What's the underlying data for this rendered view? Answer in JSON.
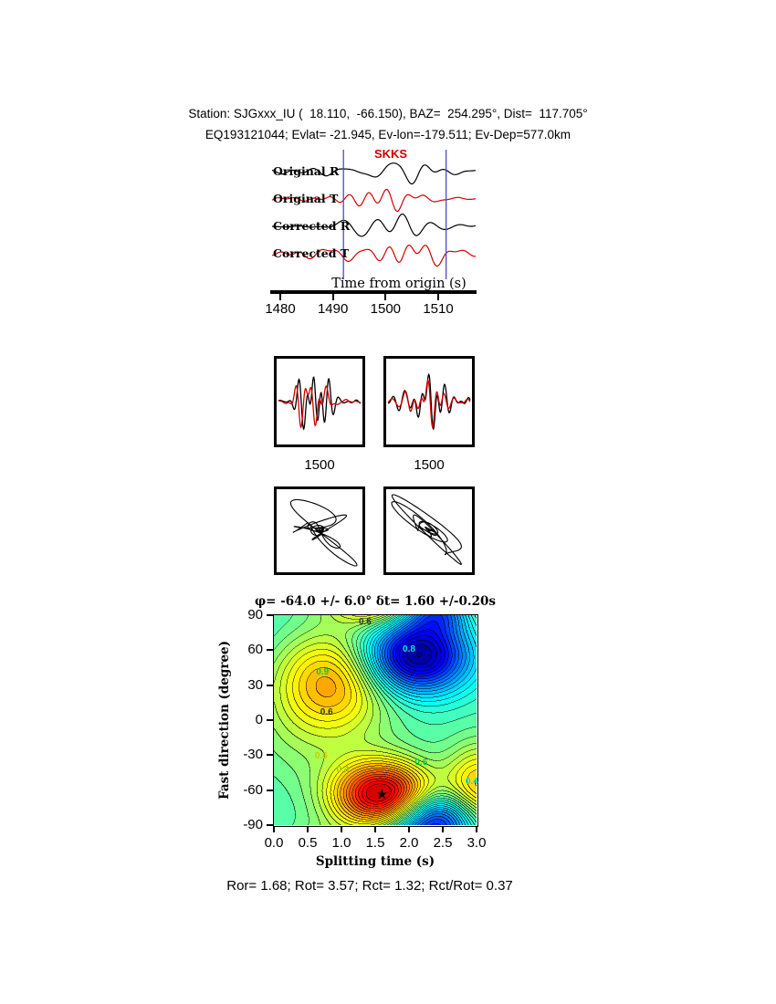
{
  "header": {
    "line1": "Station: SJGxxx_IU (  18.110,  -66.150), BAZ=  254.295°, Dist=  117.705°",
    "line2": "EQ193121044; Evlat= -21.945, Ev-lon=-179.511; Ev-Dep=577.0km"
  },
  "footer": {
    "stats": "Ror= 1.68; Rot= 3.57; Rct= 1.32; Rct/Rot= 0.37"
  },
  "chart_data": {
    "type": "composite",
    "description": "SKKS shear-wave splitting diagnostic figure: seismogram traces, corrected waveform pairs, particle motion, and splitting-parameter error surface",
    "seismogram": {
      "type": "line",
      "phase_label": "SKKS",
      "trace_labels": [
        "Original R",
        "Original T",
        "Corrected R",
        "Corrected T"
      ],
      "trace_colors": [
        "#000000",
        "#d40000",
        "#000000",
        "#d40000"
      ],
      "xlabel": "Time from origin (s)",
      "xticks": [
        1480,
        1490,
        1500,
        1510
      ],
      "xlim": [
        1478,
        1517
      ],
      "window_lines": [
        1492.0,
        1511.5
      ],
      "window_color": "#4b4bcc"
    },
    "pair_panels": {
      "type": "line",
      "xticks": [
        "1500",
        "1500"
      ],
      "series": [
        "reference component (black)",
        "shifted component (red)"
      ],
      "colors": [
        "#000000",
        "#d40000"
      ]
    },
    "particle_motion": {
      "type": "scatter",
      "panels": 2,
      "color": "#000000"
    },
    "error_surface": {
      "type": "heatmap",
      "title": "φ= -64.0 +/- 6.0° δt= 1.60 +/-0.20s",
      "xlabel": "Splitting time (s)",
      "ylabel": "Fast direction (degree)",
      "xticks": [
        "0.0",
        "0.5",
        "1.0",
        "1.5",
        "2.0",
        "2.5",
        "3.0"
      ],
      "yticks": [
        90,
        60,
        30,
        0,
        -30,
        -60,
        -90
      ],
      "xlim": [
        0,
        3
      ],
      "ylim": [
        -90,
        90
      ],
      "best_dt": 1.6,
      "dt_err": 0.2,
      "best_phi": -64.0,
      "phi_err": 6.0,
      "star_marker": "★",
      "contour_step": 0.025,
      "base_level": 0.42,
      "tilt": 0.03,
      "features": [
        {
          "x": 1.6,
          "y": -64,
          "a": 0.5,
          "sx": 0.5,
          "sy": 20
        },
        {
          "x": 2.1,
          "y": 55,
          "a": -0.44,
          "sx": 0.55,
          "sy": 22
        },
        {
          "x": 0.85,
          "y": 35,
          "a": 0.26,
          "sx": 0.6,
          "sy": 30
        },
        {
          "x": 3.05,
          "y": -58,
          "a": 0.24,
          "sx": 0.35,
          "sy": 25
        },
        {
          "x": 2.4,
          "y": 97,
          "a": -0.28,
          "sx": 0.42,
          "sy": 15
        },
        {
          "x": 0.45,
          "y": -15,
          "a": 0.08,
          "sx": 0.9,
          "sy": 40
        }
      ],
      "contour_labels": [
        {
          "text": "0.6",
          "x": 1.35,
          "y": 84,
          "color": "#333333"
        },
        {
          "text": "0.8",
          "x": 2.0,
          "y": 60,
          "color": "#00e5e5"
        },
        {
          "text": "0.9",
          "x": 0.72,
          "y": 41,
          "color": "#00cc44"
        },
        {
          "text": "0.6",
          "x": 0.78,
          "y": 6,
          "color": "#333333"
        },
        {
          "text": "0.6",
          "x": 0.7,
          "y": -31,
          "color": "#cccc00"
        },
        {
          "text": "0.4",
          "x": 1.02,
          "y": -43,
          "color": "#99cc00"
        },
        {
          "text": "0.6",
          "x": 2.18,
          "y": -37,
          "color": "#00cc44"
        },
        {
          "text": "0.4",
          "x": 2.93,
          "y": -53,
          "color": "#00dddd"
        },
        {
          "text": "0.2",
          "x": 1.52,
          "y": -77,
          "color": "#ee2200"
        }
      ]
    }
  }
}
